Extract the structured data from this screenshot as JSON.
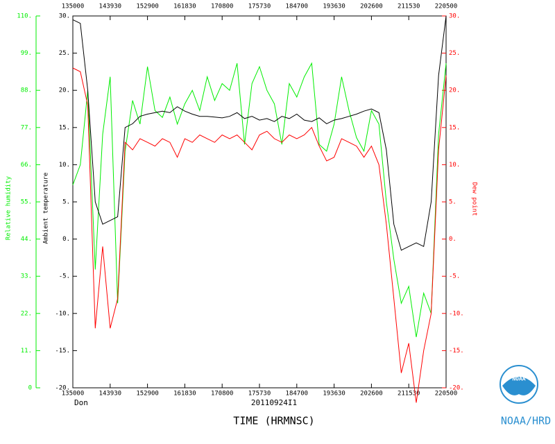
{
  "chart_data": {
    "type": "line",
    "x_label": "TIME (HRMNSC)",
    "subtitle_left": "Don",
    "subtitle_center": "20110924I1",
    "x": [
      49800,
      50394,
      50988,
      51582,
      52176,
      52770,
      53364,
      53958,
      54552,
      55146,
      55740,
      56334,
      56928,
      57522,
      58116,
      58710,
      59304,
      59898,
      60492,
      61086,
      61680,
      62274,
      62868,
      63462,
      64056,
      64650,
      65244,
      65838,
      66432,
      67026,
      67620,
      68214,
      68808,
      69402,
      69996,
      70590,
      71184,
      71778,
      72372,
      72966,
      73560,
      74154,
      74748,
      75342,
      75936,
      76530,
      77124,
      77718,
      78312,
      78906,
      79500
    ],
    "xlim": [
      49800,
      79500
    ],
    "xticks": [
      {
        "value": 49800,
        "label": "135000"
      },
      {
        "value": 52770,
        "label": "143930"
      },
      {
        "value": 55740,
        "label": "152900"
      },
      {
        "value": 58710,
        "label": "161830"
      },
      {
        "value": 61680,
        "label": "170800"
      },
      {
        "value": 64650,
        "label": "175730"
      },
      {
        "value": 67620,
        "label": "184700"
      },
      {
        "value": 70590,
        "label": "193630"
      },
      {
        "value": 73560,
        "label": "202600"
      },
      {
        "value": 76530,
        "label": "211530"
      },
      {
        "value": 79500,
        "label": "220500"
      }
    ],
    "y_label": "Ambient temperature",
    "ylim": [
      -20,
      30
    ],
    "yticks": [
      {
        "value": 30,
        "label": "30."
      },
      {
        "value": 25,
        "label": "25."
      },
      {
        "value": 20,
        "label": "20."
      },
      {
        "value": 15,
        "label": "15."
      },
      {
        "value": 10,
        "label": "10."
      },
      {
        "value": 5,
        "label": "5."
      },
      {
        "value": 0,
        "label": "0."
      },
      {
        "value": -5,
        "label": "-5."
      },
      {
        "value": -10,
        "label": "-10."
      },
      {
        "value": -15,
        "label": "-15."
      },
      {
        "value": -20,
        "label": "-20."
      }
    ],
    "y2_label": "Dew point",
    "y2lim": [
      -20,
      30
    ],
    "y2ticks": [
      {
        "value": 30,
        "label": "30."
      },
      {
        "value": 25,
        "label": "25."
      },
      {
        "value": 20,
        "label": "20."
      },
      {
        "value": 15,
        "label": "15."
      },
      {
        "value": 10,
        "label": "10."
      },
      {
        "value": 5,
        "label": "5."
      },
      {
        "value": 0,
        "label": "0."
      },
      {
        "value": -5,
        "label": "-5."
      },
      {
        "value": -10,
        "label": "-10."
      },
      {
        "value": -15,
        "label": "-15."
      },
      {
        "value": -20,
        "label": "-20."
      }
    ],
    "y3_label": "Relative humidity",
    "y3lim": [
      0,
      110
    ],
    "y3ticks": [
      {
        "value": 110,
        "label": "110."
      },
      {
        "value": 99,
        "label": "99."
      },
      {
        "value": 88,
        "label": "88."
      },
      {
        "value": 77,
        "label": "77."
      },
      {
        "value": 66,
        "label": "66."
      },
      {
        "value": 55,
        "label": "55."
      },
      {
        "value": 44,
        "label": "44."
      },
      {
        "value": 33,
        "label": "33."
      },
      {
        "value": 22,
        "label": "22."
      },
      {
        "value": 11,
        "label": "11."
      },
      0
    ],
    "series": [
      {
        "name": "Relative humidity",
        "color": "#00ee00",
        "axis": "y3",
        "values": [
          60,
          66,
          88,
          35,
          75,
          92,
          25,
          70,
          85,
          78,
          95,
          82,
          80,
          86,
          78,
          84,
          88,
          82,
          92,
          85,
          90,
          88,
          96,
          72,
          90,
          95,
          88,
          84,
          72,
          90,
          86,
          92,
          96,
          72,
          70,
          78,
          92,
          82,
          74,
          70,
          82,
          78,
          55,
          38,
          25,
          30,
          15,
          28,
          22,
          75,
          96
        ]
      },
      {
        "name": "Dew point",
        "color": "#ff0000",
        "axis": "y2",
        "values": [
          23,
          22.5,
          18,
          -12,
          -1,
          -12,
          -8,
          13,
          12,
          13.5,
          13,
          12.5,
          13.5,
          13,
          11,
          13.5,
          13,
          14,
          13.5,
          13,
          14,
          13.5,
          14,
          13,
          12,
          14,
          14.5,
          13.5,
          13,
          14,
          13.5,
          14,
          15,
          12.5,
          10.5,
          11,
          13.5,
          13,
          12.5,
          11,
          12.5,
          10,
          2,
          -8,
          -18,
          -14,
          -22,
          -15,
          -10,
          12,
          22
        ]
      },
      {
        "name": "Ambient temperature",
        "color": "#000000",
        "axis": "y",
        "values": [
          29.5,
          29,
          20,
          5,
          2,
          2.5,
          3,
          15,
          15.5,
          16.5,
          16.8,
          17,
          17.2,
          17,
          17.8,
          17.2,
          16.8,
          16.5,
          16.5,
          16.4,
          16.3,
          16.5,
          17,
          16.2,
          16.5,
          16,
          16.2,
          15.8,
          16.5,
          16.2,
          16.8,
          16,
          15.8,
          16.3,
          15.5,
          16,
          16.2,
          16.5,
          16.8,
          17.2,
          17.5,
          17,
          12,
          2,
          -1.5,
          -1,
          -0.5,
          -1,
          5,
          22,
          30
        ]
      }
    ]
  },
  "logo": {
    "text": "NOAA",
    "caption": "NOAA/HRD"
  }
}
